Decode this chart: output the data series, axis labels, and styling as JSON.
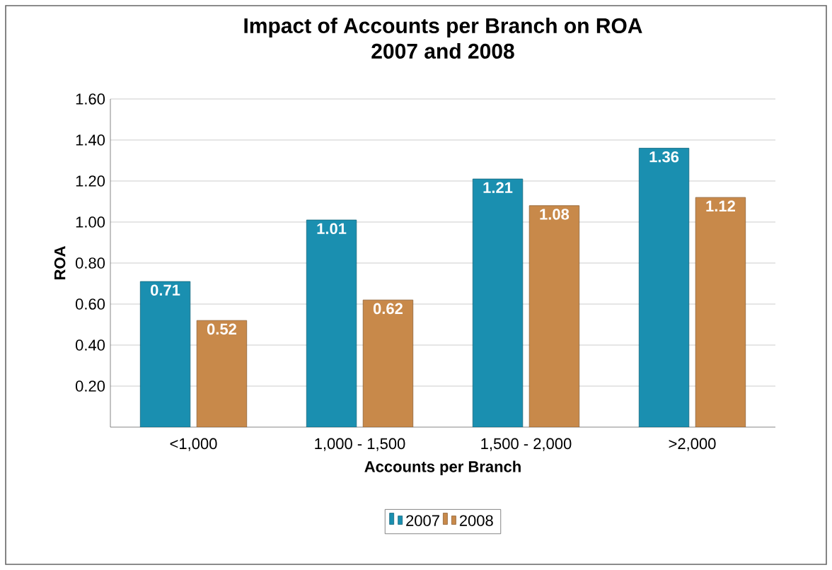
{
  "chart_data": {
    "type": "bar",
    "title": "Impact of Accounts per Branch on ROA",
    "subtitle": "2007 and 2008",
    "xlabel": "Accounts per Branch",
    "ylabel": "ROA",
    "categories": [
      "<1,000",
      "1,000 - 1,500",
      "1,500 - 2,000",
      ">2,000"
    ],
    "series": [
      {
        "name": "2007",
        "color": "#1a8fb0",
        "values": [
          0.71,
          1.01,
          1.21,
          1.36
        ],
        "value_labels": [
          "0.71",
          "1.01",
          "1.21",
          "1.36"
        ]
      },
      {
        "name": "2008",
        "color": "#c8894a",
        "values": [
          0.52,
          0.62,
          1.08,
          1.12
        ],
        "value_labels": [
          "0.52",
          "0.62",
          "1.08",
          "1.12"
        ]
      }
    ],
    "ylim": [
      0,
      1.6
    ],
    "yticks": [
      {
        "value": 0.2,
        "label": "0.20"
      },
      {
        "value": 0.4,
        "label": "0.40"
      },
      {
        "value": 0.6,
        "label": "0.60"
      },
      {
        "value": 0.8,
        "label": "0.80"
      },
      {
        "value": 1.0,
        "label": "1.00"
      },
      {
        "value": 1.2,
        "label": "1.20"
      },
      {
        "value": 1.4,
        "label": "1.40"
      },
      {
        "value": 1.6,
        "label": "1.60"
      }
    ],
    "grid": "y",
    "legend": "bottom"
  }
}
